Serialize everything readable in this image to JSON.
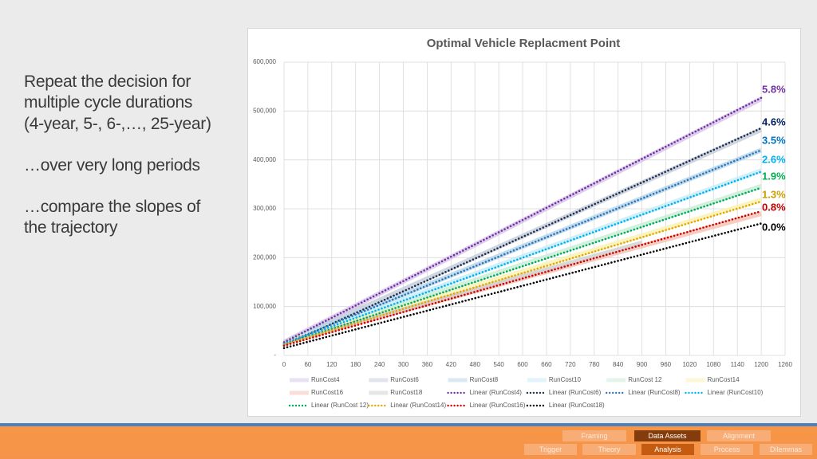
{
  "text": {
    "paragraphs": [
      [
        "Repeat the decision for",
        "multiple cycle durations",
        "(4-year, 5-, 6-,…, 25-year)"
      ],
      [
        "…over very long periods"
      ],
      [
        "…compare the slopes of",
        "the trajectory"
      ]
    ]
  },
  "chart_data": {
    "type": "line",
    "title": "Optimal Vehicle Replacment Point",
    "xlim": [
      0,
      1260
    ],
    "xticks": [
      0,
      60,
      120,
      180,
      240,
      300,
      360,
      420,
      480,
      540,
      600,
      660,
      720,
      780,
      840,
      900,
      960,
      1020,
      1080,
      1140,
      1200,
      1260
    ],
    "ylim": [
      0,
      600000
    ],
    "yticks": [
      {
        "value": 0,
        "label": "-"
      },
      {
        "value": 100000,
        "label": "100,000"
      },
      {
        "value": 200000,
        "label": "200,000"
      },
      {
        "value": 300000,
        "label": "300,000"
      },
      {
        "value": 400000,
        "label": "400,000"
      },
      {
        "value": 500000,
        "label": "500,000"
      },
      {
        "value": 600000,
        "label": "600,000"
      }
    ],
    "grid": true,
    "series": [
      {
        "name": "RunCost4",
        "color": "#d5c3e8",
        "style": "band",
        "x": [
          0,
          1200
        ],
        "values": [
          27000,
          525000
        ]
      },
      {
        "name": "RunCost6",
        "color": "#c4ccd8",
        "style": "band",
        "x": [
          0,
          1200
        ],
        "values": [
          26000,
          462000
        ]
      },
      {
        "name": "RunCost8",
        "color": "#b4d3ea",
        "style": "band",
        "x": [
          0,
          1200
        ],
        "values": [
          26000,
          420000
        ]
      },
      {
        "name": "RunCost10",
        "color": "#c4ebf7",
        "style": "band",
        "x": [
          0,
          1200
        ],
        "values": [
          26000,
          378000
        ]
      },
      {
        "name": "RunCost 12",
        "color": "#c8ecd6",
        "style": "band",
        "x": [
          0,
          1200
        ],
        "values": [
          26000,
          346000
        ]
      },
      {
        "name": "RunCost14",
        "color": "#fbf1b0",
        "style": "band",
        "x": [
          0,
          1200
        ],
        "values": [
          26000,
          318000
        ]
      },
      {
        "name": "RunCost16",
        "color": "#f4c0b0",
        "style": "band",
        "x": [
          0,
          1200
        ],
        "values": [
          26000,
          290000
        ]
      },
      {
        "name": "RunCost18",
        "color": "#cfcfcf",
        "style": "band",
        "x": [
          0,
          900
        ],
        "values": [
          26000,
          230000
        ]
      },
      {
        "name": "Linear (RunCost4)",
        "color": "#7030a0",
        "style": "dotted",
        "x": [
          0,
          1200
        ],
        "values": [
          27000,
          527000
        ]
      },
      {
        "name": "Linear (RunCost6)",
        "color": "#1f2d50",
        "style": "dotted",
        "x": [
          0,
          1200
        ],
        "values": [
          20000,
          465000
        ]
      },
      {
        "name": "Linear (RunCost8)",
        "color": "#2e75b6",
        "style": "dotted",
        "x": [
          0,
          1200
        ],
        "values": [
          24000,
          420000
        ]
      },
      {
        "name": "Linear (RunCost10)",
        "color": "#00b0f0",
        "style": "dotted",
        "x": [
          0,
          1200
        ],
        "values": [
          24000,
          376000
        ]
      },
      {
        "name": "Linear (RunCost 12)",
        "color": "#00a859",
        "style": "dotted",
        "x": [
          0,
          1200
        ],
        "values": [
          22000,
          343000
        ]
      },
      {
        "name": "Linear (RunCost14)",
        "color": "#e0a800",
        "style": "dotted",
        "x": [
          0,
          1200
        ],
        "values": [
          22000,
          315000
        ]
      },
      {
        "name": "Linear (RunCost16)",
        "color": "#d00000",
        "style": "dotted",
        "x": [
          0,
          1200
        ],
        "values": [
          20000,
          295000
        ]
      },
      {
        "name": "Linear (RunCost18)",
        "color": "#000000",
        "style": "dotted",
        "x": [
          0,
          1200
        ],
        "values": [
          15000,
          270000
        ]
      }
    ],
    "annotations": [
      {
        "text": "5.8%",
        "color": "#7030a0"
      },
      {
        "text": "4.6%",
        "color": "#002060"
      },
      {
        "text": "3.5%",
        "color": "#0070c0"
      },
      {
        "text": "2.6%",
        "color": "#00b0f0"
      },
      {
        "text": "1.9%",
        "color": "#00b050"
      },
      {
        "text": "1.3%",
        "color": "#c9a000"
      },
      {
        "text": "0.8%",
        "color": "#c00000"
      },
      {
        "text": "0.0%",
        "color": "#000000"
      }
    ]
  },
  "nav": {
    "top": [
      {
        "label": "Framing",
        "active": false
      },
      {
        "label": "Data Assets",
        "active": true,
        "color": "#843c0c"
      },
      {
        "label": "Alignment",
        "active": false
      }
    ],
    "bottom": [
      {
        "label": "Trigger",
        "active": false
      },
      {
        "label": "Theory",
        "active": false
      },
      {
        "label": "Analysis",
        "active": true,
        "color": "#c55a11"
      },
      {
        "label": "Process",
        "active": false
      },
      {
        "label": "Dilemmas",
        "active": false
      }
    ]
  }
}
